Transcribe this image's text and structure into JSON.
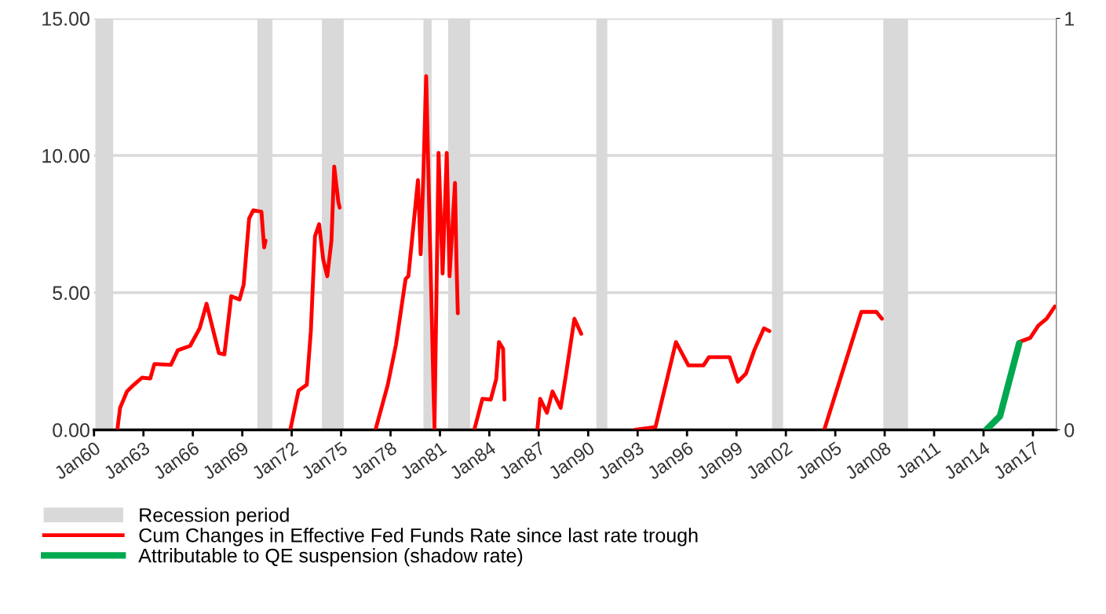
{
  "chart_data": {
    "type": "line",
    "x": [
      "1961-06",
      "1961-08",
      "1962-01",
      "1962-06",
      "1962-12",
      "1963-06",
      "1963-09",
      "1964-09",
      "1965-02",
      "1965-11",
      "1966-06",
      "1966-11",
      "1967-03",
      "1967-08",
      "1967-12",
      "1968-05",
      "1968-11",
      "1969-02",
      "1969-06",
      "1969-09",
      "1970-03",
      "1970-05",
      "1970-06",
      "1971-01",
      "1971-12",
      "1972-06",
      "1972-12",
      "1973-03",
      "1973-06",
      "1973-09",
      "1973-12",
      "1974-03",
      "1974-06",
      "1974-08",
      "1974-11",
      "1974-12",
      "1976-01",
      "1977-02",
      "1977-11",
      "1978-05",
      "1978-12",
      "1979-02",
      "1979-09",
      "1979-11",
      "1980-01",
      "1980-03",
      "1980-06",
      "1980-09",
      "1980-12",
      "1981-03",
      "1981-06",
      "1981-08",
      "1981-12",
      "1982-01",
      "1982-02",
      "1982-07",
      "1983-02",
      "1983-08",
      "1984-02",
      "1984-06",
      "1984-08",
      "1984-11",
      "1984-12",
      "1986-01",
      "1986-12",
      "1987-02",
      "1987-07",
      "1987-11",
      "1988-05",
      "1988-09",
      "1989-03",
      "1989-08",
      "1991-01",
      "1992-11",
      "1994-02",
      "1995-05",
      "1996-02",
      "1997-01",
      "1997-05",
      "1998-08",
      "1999-02",
      "1999-08",
      "2000-02",
      "2000-09",
      "2001-01",
      "2003-01",
      "2004-05",
      "2006-08",
      "2007-07",
      "2007-11",
      "2012-01",
      "2016-03",
      "2016-11",
      "2017-05",
      "2017-11",
      "2018-05"
    ],
    "series": [
      {
        "name": "Cum Changes in Effective Fed Funds Rate since last rate trough",
        "color": "#ff0000",
        "values": [
          0,
          0.8,
          1.4,
          1.64,
          1.9,
          1.87,
          2.4,
          2.37,
          2.9,
          3.06,
          3.7,
          4.6,
          3.8,
          2.8,
          2.75,
          4.87,
          4.75,
          5.3,
          7.7,
          8.0,
          7.95,
          6.65,
          6.9,
          null,
          0,
          1.43,
          1.64,
          3.6,
          7.06,
          7.5,
          6.2,
          5.6,
          6.9,
          9.6,
          8.3,
          8.1,
          null,
          0,
          1.64,
          3.1,
          5.5,
          5.6,
          9.1,
          6.4,
          9.4,
          12.9,
          6.4,
          0,
          10.1,
          5.7,
          10.1,
          5.6,
          9.0,
          6.2,
          4.25,
          null,
          0,
          1.13,
          1.1,
          1.85,
          3.2,
          2.95,
          1.1,
          null,
          0,
          1.13,
          0.62,
          1.4,
          0.8,
          2.07,
          4.05,
          3.5,
          null,
          0,
          0.1,
          3.2,
          2.35,
          2.35,
          2.65,
          2.65,
          1.75,
          2.05,
          2.9,
          3.7,
          3.6,
          null,
          0,
          4.3,
          4.3,
          4.05,
          null,
          3.2,
          3.35,
          3.8,
          4.05,
          4.5
        ]
      },
      {
        "name": "Attributable to QE suspension (shadow rate)",
        "color": "#00a84f",
        "x": [
          "2014-03",
          "2015-01",
          "2016-03"
        ],
        "values": [
          0,
          0.5,
          3.15
        ]
      }
    ],
    "bands": [
      {
        "axis": "x",
        "from": "1960-02",
        "to": "1961-03",
        "label": "Recession period",
        "color": "#d9d9d9"
      },
      {
        "axis": "x",
        "from": "1969-12",
        "to": "1970-11",
        "color": "#d9d9d9"
      },
      {
        "axis": "x",
        "from": "1973-11",
        "to": "1975-03",
        "color": "#d9d9d9"
      },
      {
        "axis": "x",
        "from": "1980-01",
        "to": "1980-07",
        "color": "#d9d9d9"
      },
      {
        "axis": "x",
        "from": "1981-07",
        "to": "1982-11",
        "color": "#d9d9d9"
      },
      {
        "axis": "x",
        "from": "1990-07",
        "to": "1991-03",
        "color": "#d9d9d9"
      },
      {
        "axis": "x",
        "from": "2001-03",
        "to": "2001-11",
        "color": "#d9d9d9"
      },
      {
        "axis": "x",
        "from": "2007-12",
        "to": "2009-06",
        "color": "#d9d9d9"
      }
    ],
    "xlim": [
      "1960-01",
      "2018-06"
    ],
    "xticks": [
      {
        "value": "1960-01",
        "label": "Jan60"
      },
      {
        "value": "1963-01",
        "label": "Jan63"
      },
      {
        "value": "1966-01",
        "label": "Jan66"
      },
      {
        "value": "1969-01",
        "label": "Jan69"
      },
      {
        "value": "1972-01",
        "label": "Jan72"
      },
      {
        "value": "1975-01",
        "label": "Jan75"
      },
      {
        "value": "1978-01",
        "label": "Jan78"
      },
      {
        "value": "1981-01",
        "label": "Jan81"
      },
      {
        "value": "1984-01",
        "label": "Jan84"
      },
      {
        "value": "1987-01",
        "label": "Jan87"
      },
      {
        "value": "1990-01",
        "label": "Jan90"
      },
      {
        "value": "1993-01",
        "label": "Jan93"
      },
      {
        "value": "1996-01",
        "label": "Jan96"
      },
      {
        "value": "1999-01",
        "label": "Jan99"
      },
      {
        "value": "2002-01",
        "label": "Jan02"
      },
      {
        "value": "2005-01",
        "label": "Jan05"
      },
      {
        "value": "2008-01",
        "label": "Jan08"
      },
      {
        "value": "2011-01",
        "label": "Jan11"
      },
      {
        "value": "2014-01",
        "label": "Jan14"
      },
      {
        "value": "2017-01",
        "label": "Jan17"
      }
    ],
    "ylim": [
      0,
      15
    ],
    "yticks": [
      {
        "value": 0,
        "label": "0.00"
      },
      {
        "value": 5,
        "label": "5.00"
      },
      {
        "value": 10,
        "label": "10.00"
      },
      {
        "value": 15,
        "label": "15.00"
      }
    ],
    "y2lim": [
      0,
      1
    ],
    "y2ticks": [
      0,
      1
    ],
    "grid": "y",
    "legend": "bottom left",
    "marker": "none",
    "line_style": "solid"
  }
}
